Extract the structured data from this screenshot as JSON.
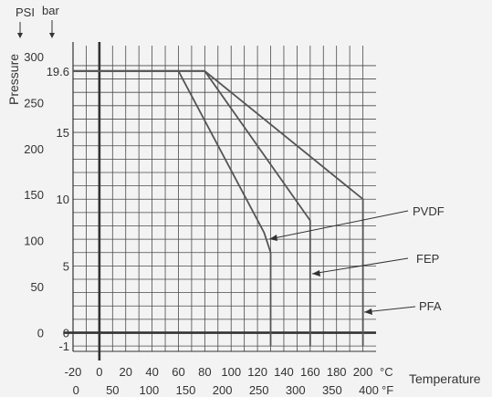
{
  "chart_data": {
    "type": "line",
    "title": "",
    "xlabel": "Temperature",
    "ylabel": "Pressure",
    "x_units": {
      "primary": "°C",
      "secondary": "°F"
    },
    "y_units": {
      "primary": "bar",
      "secondary": "PSI"
    },
    "x_range_c": [
      -20,
      210
    ],
    "y_range_bar": [
      -1.4,
      21.5
    ],
    "grid": true,
    "x_ticks_c": [
      "-20",
      "0",
      "20",
      "40",
      "60",
      "80",
      "100",
      "120",
      "140",
      "160",
      "180",
      "200"
    ],
    "x_ticks_f": [
      "0",
      "50",
      "100",
      "150",
      "200",
      "250",
      "300",
      "350",
      "400"
    ],
    "y_ticks_bar": [
      "-1",
      "0",
      "5",
      "10",
      "15",
      "19.6"
    ],
    "y_ticks_psi": [
      "0",
      "50",
      "100",
      "150",
      "200",
      "250",
      "300"
    ],
    "series": [
      {
        "name": "PVDF",
        "x": [
          -20,
          60,
          125,
          130,
          130
        ],
        "y": [
          19.6,
          19.6,
          7.5,
          6.0,
          -1
        ]
      },
      {
        "name": "FEP",
        "x": [
          -20,
          80,
          160,
          160
        ],
        "y": [
          19.6,
          19.6,
          8.4,
          -1
        ]
      },
      {
        "name": "PFA",
        "x": [
          -20,
          80,
          200,
          200
        ],
        "y": [
          19.6,
          19.6,
          10,
          -1
        ]
      }
    ]
  },
  "labels": {
    "psi": "PSI",
    "bar": "bar",
    "deg_c": "°C",
    "deg_f": "°F",
    "ylabel": "Pressure",
    "xlabel": "Temperature"
  },
  "callouts": {
    "pvdf": "PVDF",
    "fep": "FEP",
    "pfa": "PFA"
  }
}
